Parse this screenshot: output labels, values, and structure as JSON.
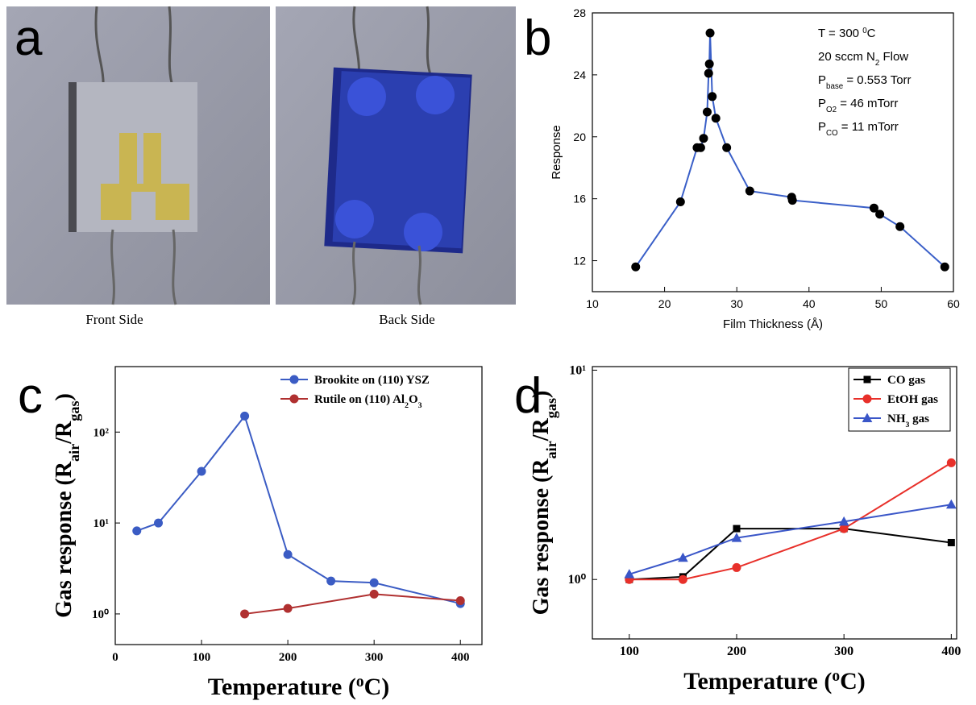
{
  "panel_a": {
    "label": "a",
    "captions": [
      "Front Side",
      "Back Side"
    ]
  },
  "chart_data": [
    {
      "type": "line",
      "label": "b",
      "xlabel": "Film Thickness (Å)",
      "ylabel": "Response",
      "xlim": [
        10,
        60
      ],
      "xticks": [
        10,
        20,
        30,
        40,
        50,
        60
      ],
      "ylim": [
        10,
        28
      ],
      "yticks": [
        12,
        16,
        20,
        24,
        28
      ],
      "grid": false,
      "annotations": [
        [
          "T = 300 ",
          {
            "sup": "0"
          },
          "C"
        ],
        [
          "20 sccm N",
          {
            "sub": "2"
          },
          " Flow"
        ],
        [
          "P",
          {
            "sub": "base"
          },
          " = 0.553 Torr"
        ],
        [
          "P",
          {
            "sub": "O"
          },
          {
            "sub": "2"
          },
          " = 46 mTorr"
        ],
        [
          "P",
          {
            "sub": "CO"
          },
          " = 11 mTorr"
        ]
      ],
      "series": [
        {
          "color": "#3a5fc8",
          "marker": "circle",
          "marker_color": "#000000",
          "x": [
            16,
            22.2,
            24.5,
            25,
            25.4,
            25.9,
            26.1,
            26.2,
            26.3,
            26.6,
            27.1,
            28.6,
            31.8,
            37.6,
            37.7,
            49,
            49.8,
            52.6,
            58.8
          ],
          "values": [
            11.6,
            15.8,
            19.3,
            19.3,
            19.9,
            21.6,
            24.1,
            24.7,
            26.7,
            22.6,
            21.2,
            19.3,
            16.5,
            16.1,
            15.9,
            15.4,
            15.0,
            14.2,
            11.6
          ]
        }
      ]
    },
    {
      "type": "line",
      "label": "c",
      "xlabel": [
        "Temperature (",
        {
          "sup": "o"
        },
        "C)"
      ],
      "ylabel": [
        "Gas response (R",
        {
          "sub": "air"
        },
        "/R",
        {
          "sub": "gas"
        },
        ")"
      ],
      "xlim": [
        0,
        425
      ],
      "xticks": [
        0,
        100,
        200,
        300,
        400
      ],
      "ylim": [
        0.46,
        525
      ],
      "log_y": true,
      "yticks": [
        {
          "value": 1,
          "label": "10⁰"
        },
        {
          "value": 10,
          "label": "10¹"
        },
        {
          "value": 100,
          "label": "10²"
        }
      ],
      "grid": false,
      "legend": "upper right",
      "series": [
        {
          "name": "Brookite on (110) YSZ",
          "color": "#3b5cc4",
          "marker": "circle",
          "x": [
            25,
            50,
            100,
            150,
            200,
            250,
            300,
            400
          ],
          "values": [
            8.2,
            10,
            37,
            150,
            4.5,
            2.3,
            2.2,
            1.3
          ]
        },
        {
          "name": [
            "Rutile on (110) Al",
            {
              "sub": "2"
            },
            "O",
            {
              "sub": "3"
            }
          ],
          "color": "#b03030",
          "marker": "circle",
          "x": [
            150,
            200,
            300,
            400
          ],
          "values": [
            1.0,
            1.15,
            1.65,
            1.4
          ]
        }
      ]
    },
    {
      "type": "line",
      "label": "d",
      "xlabel": [
        "Temperature (",
        {
          "sup": "o"
        },
        "C)"
      ],
      "ylabel": [
        "Gas response (R",
        {
          "sub": "air"
        },
        "/R",
        {
          "sub": "gas"
        },
        ")"
      ],
      "xlim": [
        65.6,
        405
      ],
      "xticks": [
        100,
        200,
        300,
        400
      ],
      "ylim": [
        0.52,
        10.4
      ],
      "log_y": true,
      "yticks": [
        {
          "value": 1,
          "label": "10⁰"
        },
        {
          "value": 10,
          "label": "10¹"
        }
      ],
      "grid": false,
      "legend": "upper right",
      "series": [
        {
          "name": "CO gas",
          "color": "#000000",
          "marker": "square",
          "x": [
            100,
            150,
            200,
            300,
            400
          ],
          "values": [
            1.0,
            1.03,
            1.75,
            1.75,
            1.5
          ]
        },
        {
          "name": "EtOH gas",
          "color": "#e8302a",
          "marker": "circle",
          "x": [
            100,
            150,
            200,
            300,
            400
          ],
          "values": [
            1.0,
            1.0,
            1.14,
            1.75,
            3.61
          ]
        },
        {
          "name": [
            "NH",
            {
              "sub": "3"
            },
            " gas"
          ],
          "color": "#3a56c8",
          "marker": "triangle",
          "x": [
            100,
            150,
            200,
            300,
            400
          ],
          "values": [
            1.06,
            1.27,
            1.58,
            1.89,
            2.28
          ]
        }
      ]
    }
  ]
}
